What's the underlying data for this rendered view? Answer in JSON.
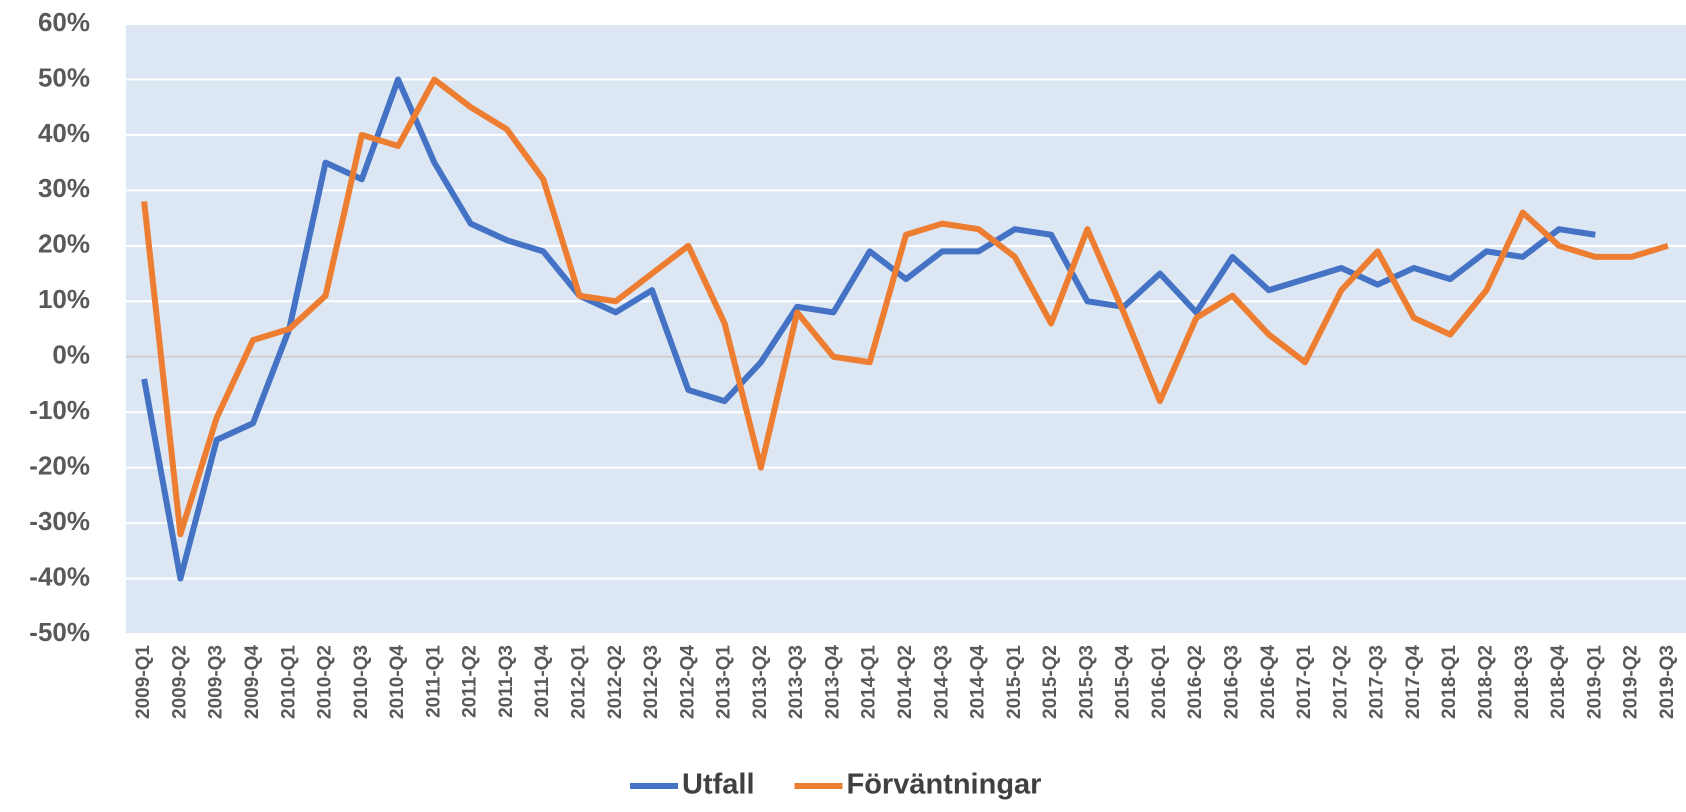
{
  "chart_data": {
    "type": "line",
    "categories": [
      "2009-Q1",
      "2009-Q2",
      "2009-Q3",
      "2009-Q4",
      "2010-Q1",
      "2010-Q2",
      "2010-Q3",
      "2010-Q4",
      "2011-Q1",
      "2011-Q2",
      "2011-Q3",
      "2011-Q4",
      "2012-Q1",
      "2012-Q2",
      "2012-Q3",
      "2012-Q4",
      "2013-Q1",
      "2013-Q2",
      "2013-Q3",
      "2013-Q4",
      "2014-Q1",
      "2014-Q2",
      "2014-Q3",
      "2014-Q4",
      "2015-Q1",
      "2015-Q2",
      "2015-Q3",
      "2015-Q4",
      "2016-Q1",
      "2016-Q2",
      "2016-Q3",
      "2016-Q4",
      "2017-Q1",
      "2017-Q2",
      "2017-Q3",
      "2017-Q4",
      "2018-Q1",
      "2018-Q2",
      "2018-Q3",
      "2018-Q4",
      "2019-Q1",
      "2019-Q2",
      "2019-Q3"
    ],
    "series": [
      {
        "name": "Utfall",
        "color": "#4472c4",
        "values": [
          -4,
          -40,
          -15,
          -12,
          5,
          35,
          32,
          50,
          35,
          24,
          21,
          19,
          11,
          8,
          12,
          -6,
          -8,
          -1,
          9,
          8,
          19,
          14,
          19,
          19,
          23,
          22,
          10,
          9,
          15,
          8,
          18,
          12,
          14,
          16,
          13,
          16,
          14,
          19,
          18,
          23,
          22,
          null,
          null
        ]
      },
      {
        "name": "Förväntningar",
        "color": "#ed7d31",
        "values": [
          28,
          -32,
          -11,
          3,
          5,
          11,
          40,
          38,
          50,
          45,
          41,
          32,
          11,
          10,
          15,
          20,
          6,
          -20,
          8,
          0,
          -1,
          22,
          24,
          23,
          18,
          6,
          23,
          8,
          -8,
          7,
          11,
          4,
          -1,
          12,
          19,
          7,
          4,
          12,
          26,
          20,
          18,
          18,
          20
        ]
      }
    ],
    "ylim": [
      -50,
      60
    ],
    "yticks": [
      {
        "value": -50,
        "label": "-50%"
      },
      {
        "value": -40,
        "label": "-40%"
      },
      {
        "value": -30,
        "label": "-30%"
      },
      {
        "value": -20,
        "label": "-20%"
      },
      {
        "value": -10,
        "label": "-10%"
      },
      {
        "value": 0,
        "label": "0%"
      },
      {
        "value": 10,
        "label": "10%"
      },
      {
        "value": 20,
        "label": "20%"
      },
      {
        "value": 30,
        "label": "30%"
      },
      {
        "value": 40,
        "label": "40%"
      },
      {
        "value": 50,
        "label": "50%"
      },
      {
        "value": 60,
        "label": "60%"
      }
    ],
    "grid": true,
    "legend": "bottom"
  }
}
